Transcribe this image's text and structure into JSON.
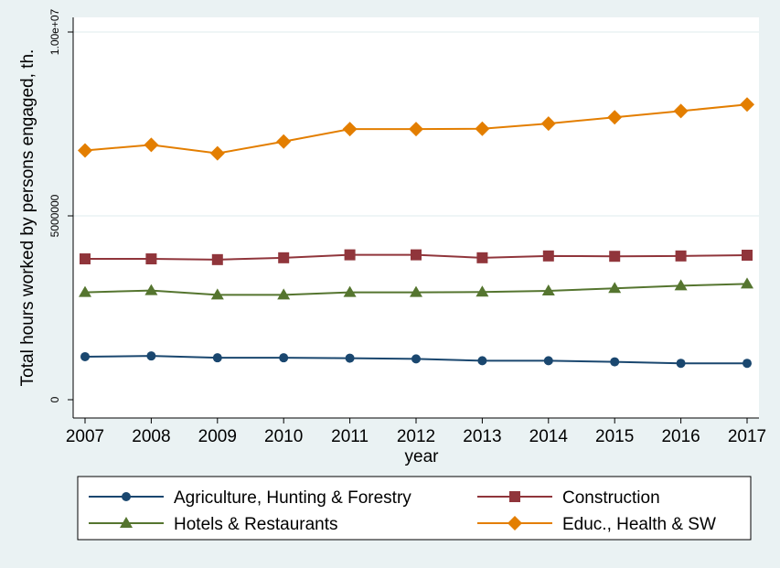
{
  "chart_data": {
    "type": "line",
    "title": "",
    "xlabel": "year",
    "ylabel": "Total hours worked by persons engaged, th.",
    "x": [
      2007,
      2008,
      2009,
      2010,
      2011,
      2012,
      2013,
      2014,
      2015,
      2016,
      2017
    ],
    "xticks": [
      "2007",
      "2008",
      "2009",
      "2010",
      "2011",
      "2012",
      "2013",
      "2014",
      "2015",
      "2016",
      "2017"
    ],
    "ylim": [
      0,
      10000000
    ],
    "yticks": [
      {
        "value": 0,
        "label": "0"
      },
      {
        "value": 5000000,
        "label": "5000000"
      },
      {
        "value": 10000000,
        "label": "1.00e+07"
      }
    ],
    "grid": true,
    "legend": "bottom",
    "series": [
      {
        "name": "Agriculture, Hunting & Forestry",
        "color": "#1a476f",
        "marker": "circle",
        "values": [
          1170000,
          1190000,
          1140000,
          1140000,
          1130000,
          1110000,
          1060000,
          1060000,
          1030000,
          990000,
          990000
        ]
      },
      {
        "name": "Construction",
        "color": "#90353b",
        "marker": "square",
        "values": [
          3830000,
          3830000,
          3810000,
          3860000,
          3940000,
          3940000,
          3860000,
          3910000,
          3900000,
          3910000,
          3930000
        ]
      },
      {
        "name": "Hotels & Restaurants",
        "color": "#55752f",
        "marker": "triangle",
        "values": [
          2920000,
          2970000,
          2850000,
          2850000,
          2920000,
          2920000,
          2930000,
          2960000,
          3030000,
          3100000,
          3150000
        ]
      },
      {
        "name": "Educ., Health & SW",
        "color": "#e37e00",
        "marker": "diamond",
        "values": [
          6780000,
          6930000,
          6700000,
          7020000,
          7360000,
          7360000,
          7370000,
          7510000,
          7680000,
          7850000,
          8030000
        ]
      }
    ]
  }
}
